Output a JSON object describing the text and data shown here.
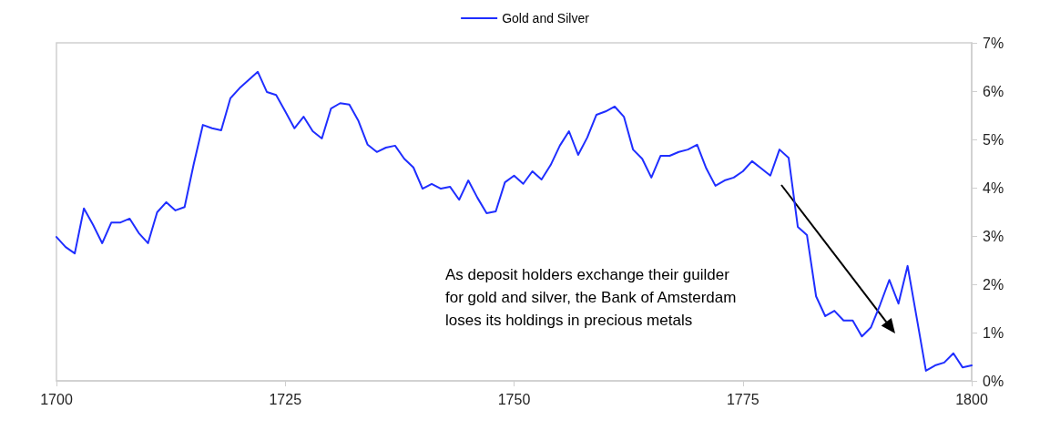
{
  "chart_data": {
    "type": "line",
    "legend": "top",
    "grid": false,
    "marker": "none",
    "line_style": "solid",
    "xlim": [
      1700,
      1800
    ],
    "xticks": [
      1700,
      1725,
      1750,
      1775,
      1800
    ],
    "ylim": [
      0,
      7
    ],
    "yticks": [
      {
        "value": 0,
        "label": "0%"
      },
      {
        "value": 1,
        "label": "1%"
      },
      {
        "value": 2,
        "label": "2%"
      },
      {
        "value": 3,
        "label": "3%"
      },
      {
        "value": 4,
        "label": "4%"
      },
      {
        "value": 5,
        "label": "5%"
      },
      {
        "value": 6,
        "label": "6%"
      },
      {
        "value": 7,
        "label": "7%"
      }
    ],
    "x": [
      1700,
      1701,
      1702,
      1703,
      1704,
      1705,
      1706,
      1707,
      1708,
      1709,
      1710,
      1711,
      1712,
      1713,
      1714,
      1715,
      1716,
      1717,
      1718,
      1719,
      1720,
      1721,
      1722,
      1723,
      1724,
      1725,
      1726,
      1727,
      1728,
      1729,
      1730,
      1731,
      1732,
      1733,
      1734,
      1735,
      1736,
      1737,
      1738,
      1739,
      1740,
      1741,
      1742,
      1743,
      1744,
      1745,
      1746,
      1747,
      1748,
      1749,
      1750,
      1751,
      1752,
      1753,
      1754,
      1755,
      1756,
      1757,
      1758,
      1759,
      1760,
      1761,
      1762,
      1763,
      1764,
      1765,
      1766,
      1767,
      1768,
      1769,
      1770,
      1771,
      1772,
      1773,
      1774,
      1775,
      1776,
      1777,
      1778,
      1779,
      1780,
      1781,
      1782,
      1783,
      1784,
      1785,
      1786,
      1787,
      1788,
      1789,
      1790,
      1791,
      1792,
      1793,
      1794,
      1795,
      1796,
      1797,
      1798,
      1799,
      1800
    ],
    "series": [
      {
        "name": "Gold and Silver",
        "color": "#1f2eff",
        "values": [
          2.98,
          2.77,
          2.64,
          3.57,
          3.23,
          2.85,
          3.28,
          3.28,
          3.36,
          3.06,
          2.85,
          3.49,
          3.7,
          3.53,
          3.6,
          4.49,
          5.3,
          5.23,
          5.19,
          5.85,
          6.06,
          6.23,
          6.4,
          5.98,
          5.92,
          5.58,
          5.23,
          5.47,
          5.17,
          5.02,
          5.64,
          5.75,
          5.72,
          5.38,
          4.89,
          4.74,
          4.83,
          4.87,
          4.6,
          4.42,
          3.98,
          4.08,
          3.98,
          4.02,
          3.75,
          4.15,
          3.79,
          3.47,
          3.51,
          4.11,
          4.25,
          4.08,
          4.34,
          4.17,
          4.47,
          4.87,
          5.17,
          4.68,
          5.04,
          5.51,
          5.58,
          5.68,
          5.47,
          4.79,
          4.6,
          4.21,
          4.66,
          4.66,
          4.74,
          4.79,
          4.89,
          4.4,
          4.04,
          4.15,
          4.21,
          4.34,
          4.55,
          4.4,
          4.25,
          4.79,
          4.62,
          3.19,
          3.02,
          1.75,
          1.34,
          1.45,
          1.25,
          1.25,
          0.92,
          1.11,
          1.58,
          2.09,
          1.6,
          2.38,
          1.3,
          0.21,
          0.32,
          0.38,
          0.57,
          0.28,
          0.32
        ]
      }
    ],
    "annotations": [
      "As deposit holders exchange their guilder\nfor gold and silver, the Bank of Amsterdam\nloses its holdings in precious metals"
    ]
  }
}
